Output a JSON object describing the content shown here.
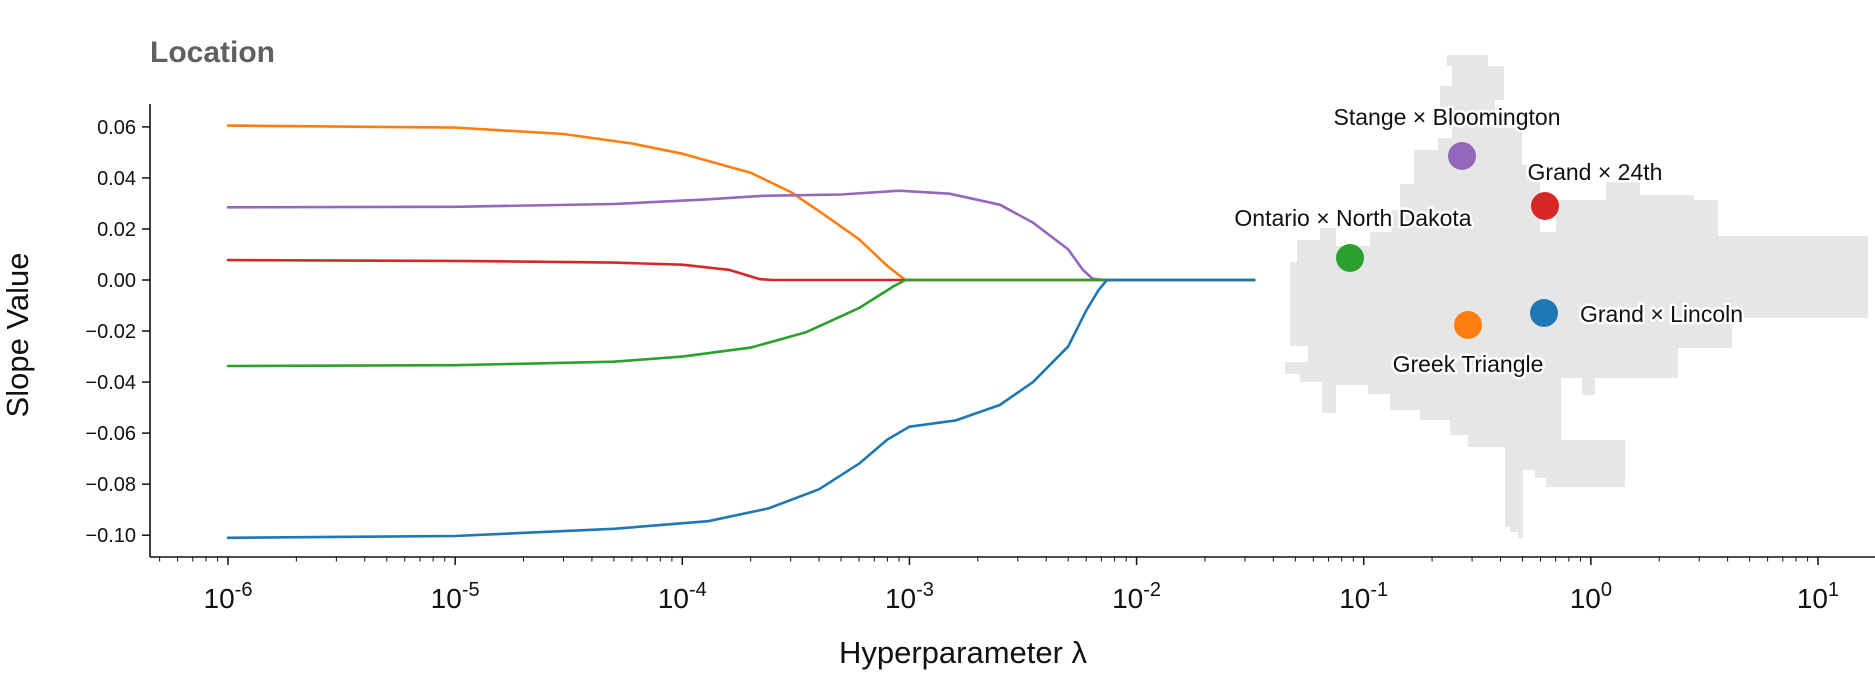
{
  "chart_data": {
    "type": "line",
    "title": "Location",
    "xlabel": "Hyperparameter λ",
    "ylabel": "Slope Value",
    "xscale": "log",
    "xlim": [
      5e-07,
      20
    ],
    "ylim": [
      -0.11,
      0.068
    ],
    "yticks": [
      -0.1,
      -0.08,
      -0.06,
      -0.04,
      -0.02,
      0.0,
      0.02,
      0.04,
      0.06
    ],
    "ytick_labels": [
      "−0.10",
      "−0.08",
      "−0.06",
      "−0.04",
      "−0.02",
      "0.00",
      "0.02",
      "0.04",
      "0.06"
    ],
    "xticks": [
      {
        "base": "10",
        "exp": "-6",
        "value": 1e-06
      },
      {
        "base": "10",
        "exp": "-5",
        "value": 1e-05
      },
      {
        "base": "10",
        "exp": "-4",
        "value": 0.0001
      },
      {
        "base": "10",
        "exp": "-3",
        "value": 0.001
      },
      {
        "base": "10",
        "exp": "-2",
        "value": 0.01
      },
      {
        "base": "10",
        "exp": "-1",
        "value": 0.1
      },
      {
        "base": "10",
        "exp": "0",
        "value": 1
      },
      {
        "base": "10",
        "exp": "1",
        "value": 10
      }
    ],
    "grid": false,
    "series": [
      {
        "location": "Greek Triangle",
        "color": "#ff7f0e",
        "points": [
          [
            1e-06,
            0.0605
          ],
          [
            1e-05,
            0.0597
          ],
          [
            3e-05,
            0.0572
          ],
          [
            6e-05,
            0.0535
          ],
          [
            0.0001,
            0.0495
          ],
          [
            0.0002,
            0.042
          ],
          [
            0.0003,
            0.0345
          ],
          [
            0.0004,
            0.027
          ],
          [
            0.0006,
            0.016
          ],
          [
            0.0008,
            0.0055
          ],
          [
            0.00096,
            0.0
          ],
          [
            0.033,
            0.0
          ]
        ]
      },
      {
        "location": "Stange × Bloomington",
        "color": "#9467bd",
        "points": [
          [
            1e-06,
            0.0285
          ],
          [
            1e-05,
            0.0287
          ],
          [
            5e-05,
            0.0298
          ],
          [
            0.000125,
            0.0315
          ],
          [
            0.000225,
            0.033
          ],
          [
            0.0005,
            0.0335
          ],
          [
            0.0009,
            0.035
          ],
          [
            0.0015,
            0.0338
          ],
          [
            0.0025,
            0.0295
          ],
          [
            0.0035,
            0.0225
          ],
          [
            0.005,
            0.012
          ],
          [
            0.0058,
            0.004
          ],
          [
            0.0064,
            0.0005
          ],
          [
            0.0072,
            0.0
          ],
          [
            0.033,
            0.0
          ]
        ]
      },
      {
        "location": "Grand × 24th",
        "color": "#d62728",
        "points": [
          [
            1e-06,
            0.0078
          ],
          [
            1e-05,
            0.0075
          ],
          [
            5e-05,
            0.0068
          ],
          [
            0.0001,
            0.006
          ],
          [
            0.00016,
            0.004
          ],
          [
            0.00022,
            0.0003
          ],
          [
            0.00025,
            0.0
          ],
          [
            0.033,
            0.0
          ]
        ]
      },
      {
        "location": "Ontario × North Dakota",
        "color": "#2ca02c",
        "points": [
          [
            1e-06,
            -0.0337
          ],
          [
            1e-05,
            -0.0334
          ],
          [
            5e-05,
            -0.032
          ],
          [
            0.0001,
            -0.03
          ],
          [
            0.0002,
            -0.0265
          ],
          [
            0.00035,
            -0.0205
          ],
          [
            0.0006,
            -0.011
          ],
          [
            0.00085,
            -0.0025
          ],
          [
            0.00096,
            0.0
          ],
          [
            0.033,
            0.0
          ]
        ]
      },
      {
        "location": "Grand × Lincoln",
        "color": "#1f77b4",
        "points": [
          [
            1e-06,
            -0.101
          ],
          [
            1e-05,
            -0.1003
          ],
          [
            5e-05,
            -0.0975
          ],
          [
            0.00013,
            -0.0945
          ],
          [
            0.00024,
            -0.0895
          ],
          [
            0.0004,
            -0.082
          ],
          [
            0.0006,
            -0.072
          ],
          [
            0.0008,
            -0.0625
          ],
          [
            0.001,
            -0.0575
          ],
          [
            0.0016,
            -0.055
          ],
          [
            0.0025,
            -0.049
          ],
          [
            0.0035,
            -0.04
          ],
          [
            0.005,
            -0.026
          ],
          [
            0.006,
            -0.012
          ],
          [
            0.0068,
            -0.004
          ],
          [
            0.0074,
            0.0
          ],
          [
            0.033,
            0.0
          ]
        ]
      }
    ],
    "annotations": [
      {
        "text": "Stange × Bloomington",
        "color": "#9467bd"
      },
      {
        "text": "Grand × 24th",
        "color": "#d62728"
      },
      {
        "text": "Ontario × North Dakota",
        "color": "#2ca02c"
      },
      {
        "text": "Grand × Lincoln",
        "color": "#1f77b4"
      },
      {
        "text": "Greek Triangle",
        "color": "#ff7f0e"
      }
    ],
    "map_fill_color": "#e6e6e6"
  }
}
